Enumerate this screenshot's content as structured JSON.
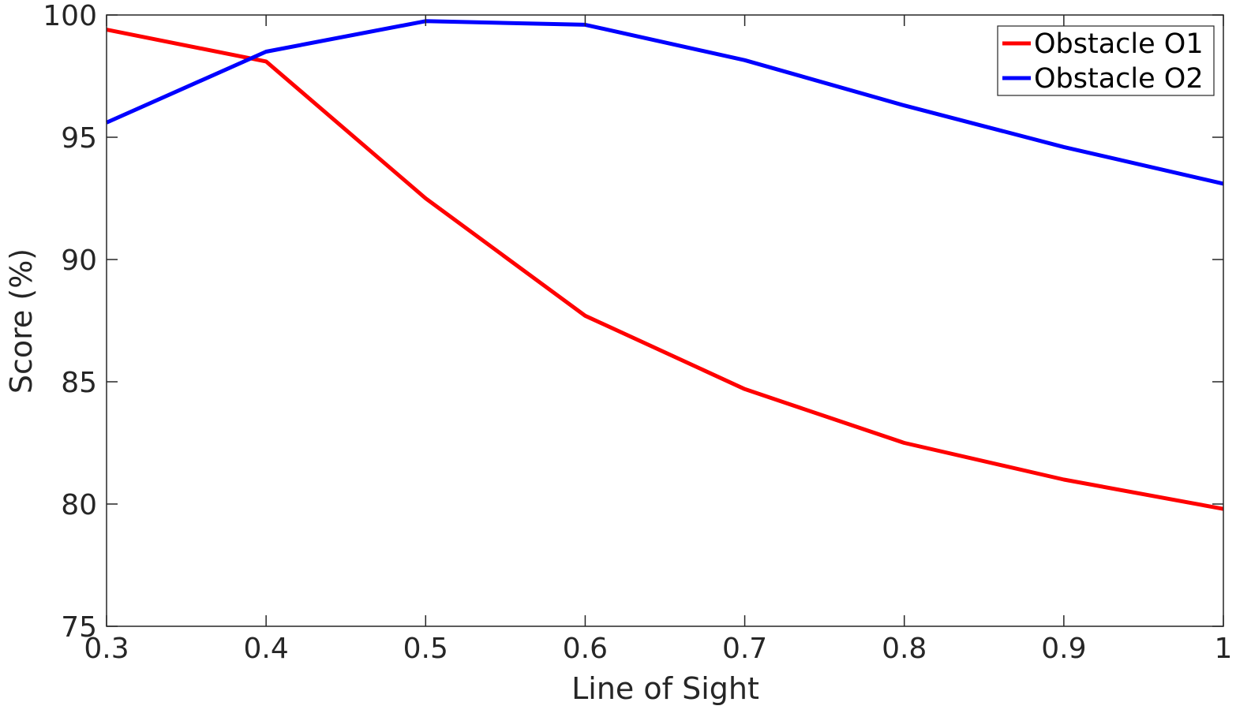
{
  "chart_data": {
    "type": "line",
    "xlabel": "Line of Sight",
    "ylabel": "Score (%)",
    "xlim": [
      0.3,
      1
    ],
    "ylim": [
      75,
      100
    ],
    "x_ticks": [
      "0.3",
      "0.4",
      "0.5",
      "0.6",
      "0.7",
      "0.8",
      "0.9",
      "1"
    ],
    "y_ticks": [
      "75",
      "80",
      "85",
      "90",
      "95",
      "100"
    ],
    "grid": false,
    "legend_position": "top-right",
    "x": [
      0.3,
      0.4,
      0.5,
      0.6,
      0.7,
      0.8,
      0.9,
      1.0
    ],
    "series": [
      {
        "name": "Obstacle O1",
        "color": "#ff0000",
        "values": [
          99.4,
          98.1,
          92.5,
          87.7,
          84.7,
          82.5,
          81.0,
          79.8
        ]
      },
      {
        "name": "Obstacle O2",
        "color": "#0000ff",
        "values": [
          95.6,
          98.5,
          99.75,
          99.6,
          98.15,
          96.3,
          94.6,
          93.1
        ]
      }
    ]
  }
}
